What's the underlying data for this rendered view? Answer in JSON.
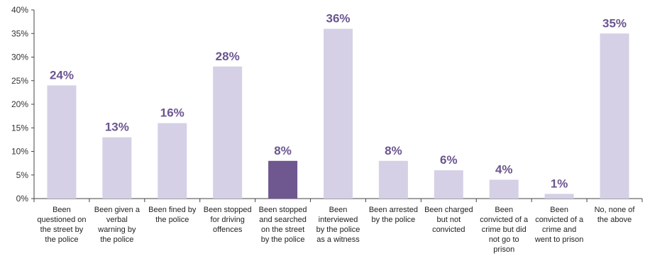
{
  "chart_data": {
    "type": "bar",
    "categories": [
      [
        "Been",
        "questioned on",
        "the street by",
        "the police"
      ],
      [
        "Been given a",
        "verbal",
        "warning by",
        "the police"
      ],
      [
        "Been fined by",
        "the police"
      ],
      [
        "Been stopped",
        "for driving",
        "offences"
      ],
      [
        "Been stopped",
        "and searched",
        "on the street",
        "by the police"
      ],
      [
        "Been",
        "interviewed",
        "by the police",
        "as a witness"
      ],
      [
        "Been arrested",
        "by the police"
      ],
      [
        "Been charged",
        "but not",
        "convicted"
      ],
      [
        "Been",
        "convicted of a",
        "crime but did",
        "not go to",
        "prison"
      ],
      [
        "Been",
        "convicted of a",
        "crime and",
        "went to prison"
      ],
      [
        "No, none of",
        "the above"
      ]
    ],
    "values": [
      24,
      13,
      16,
      28,
      8,
      36,
      8,
      6,
      4,
      1,
      35
    ],
    "data_labels": [
      "24%",
      "13%",
      "16%",
      "28%",
      "8%",
      "36%",
      "8%",
      "6%",
      "4%",
      "1%",
      "35%"
    ],
    "highlight_index": 4,
    "ylim": [
      0,
      40
    ],
    "yticks": [
      0,
      5,
      10,
      15,
      20,
      25,
      30,
      35,
      40
    ],
    "ytick_labels": [
      "0%",
      "5%",
      "10%",
      "15%",
      "20%",
      "25%",
      "30%",
      "35%",
      "40%"
    ],
    "title": "",
    "xlabel": "",
    "ylabel": "",
    "grid": false,
    "legend": "none",
    "colors": {
      "bar": "#d5d0e6",
      "highlight": "#6f5790",
      "label": "#6b5590"
    }
  }
}
